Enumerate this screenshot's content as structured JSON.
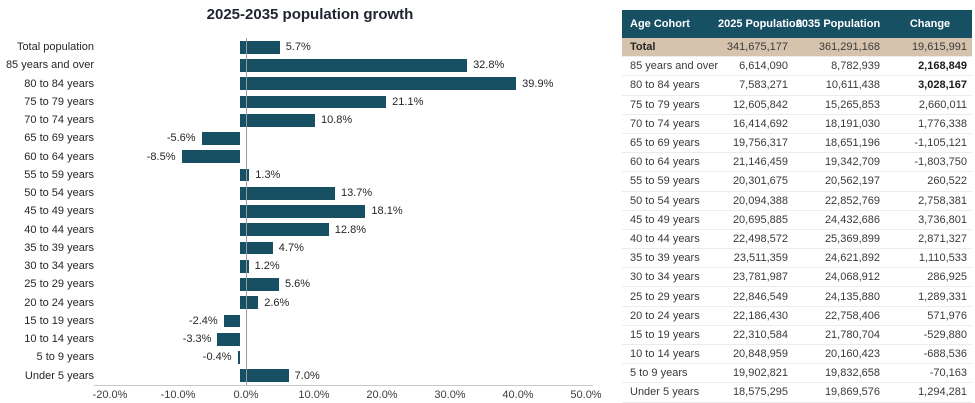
{
  "chart_data": {
    "type": "bar",
    "orientation": "horizontal",
    "title": "2025-2035 population growth",
    "categories": [
      "Total population",
      "85 years and over",
      "80 to 84 years",
      "75 to 79 years",
      "70 to 74 years",
      "65 to 69 years",
      "60 to 64 years",
      "55 to 59 years",
      "50 to 54 years",
      "45 to 49 years",
      "40 to 44 years",
      "35 to 39 years",
      "30 to 34 years",
      "25 to 29 years",
      "20 to 24 years",
      "15 to 19 years",
      "10 to 14 years",
      "5 to 9 years",
      "Under 5 years"
    ],
    "values": [
      5.7,
      32.8,
      39.9,
      21.1,
      10.8,
      -5.6,
      -8.5,
      1.3,
      13.7,
      18.1,
      12.8,
      4.7,
      1.2,
      5.6,
      2.6,
      -2.4,
      -3.3,
      -0.4,
      7.0
    ],
    "data_labels": [
      "5.7%",
      "32.8%",
      "39.9%",
      "21.1%",
      "10.8%",
      "-5.6%",
      "-8.5%",
      "1.3%",
      "13.7%",
      "18.1%",
      "12.8%",
      "4.7%",
      "1.2%",
      "5.6%",
      "2.6%",
      "-2.4%",
      "-3.3%",
      "-0.4%",
      "7.0%"
    ],
    "xlim": [
      -20,
      50
    ],
    "x_ticks": [
      "-20.0%",
      "-10.0%",
      "0.0%",
      "10.0%",
      "20.0%",
      "30.0%",
      "40.0%",
      "50.0%"
    ],
    "xlabel": "",
    "ylabel": "",
    "grid": "off",
    "legend_position": "none",
    "bar_color": "#174f63"
  },
  "table": {
    "header_bg": "#174f63",
    "total_row_bg": "#d6c3ae",
    "headers": [
      "Age Cohort",
      "2025 Population",
      "2035 Population",
      "Change"
    ],
    "rows": [
      {
        "cohort": "Total",
        "p2025": "341,675,177",
        "p2035": "361,291,168",
        "change": "19,615,991",
        "highlight": true,
        "bold_change": false
      },
      {
        "cohort": "85 years and over",
        "p2025": "6,614,090",
        "p2035": "8,782,939",
        "change": "2,168,849",
        "highlight": false,
        "bold_change": true
      },
      {
        "cohort": "80 to 84 years",
        "p2025": "7,583,271",
        "p2035": "10,611,438",
        "change": "3,028,167",
        "highlight": false,
        "bold_change": true
      },
      {
        "cohort": "75 to 79 years",
        "p2025": "12,605,842",
        "p2035": "15,265,853",
        "change": "2,660,011",
        "highlight": false,
        "bold_change": false
      },
      {
        "cohort": "70 to 74 years",
        "p2025": "16,414,692",
        "p2035": "18,191,030",
        "change": "1,776,338",
        "highlight": false,
        "bold_change": false
      },
      {
        "cohort": "65 to 69 years",
        "p2025": "19,756,317",
        "p2035": "18,651,196",
        "change": "-1,105,121",
        "highlight": false,
        "bold_change": false
      },
      {
        "cohort": "60 to 64 years",
        "p2025": "21,146,459",
        "p2035": "19,342,709",
        "change": "-1,803,750",
        "highlight": false,
        "bold_change": false
      },
      {
        "cohort": "55 to 59 years",
        "p2025": "20,301,675",
        "p2035": "20,562,197",
        "change": "260,522",
        "highlight": false,
        "bold_change": false
      },
      {
        "cohort": "50 to 54 years",
        "p2025": "20,094,388",
        "p2035": "22,852,769",
        "change": "2,758,381",
        "highlight": false,
        "bold_change": false
      },
      {
        "cohort": "45 to 49 years",
        "p2025": "20,695,885",
        "p2035": "24,432,686",
        "change": "3,736,801",
        "highlight": false,
        "bold_change": false
      },
      {
        "cohort": "40 to 44 years",
        "p2025": "22,498,572",
        "p2035": "25,369,899",
        "change": "2,871,327",
        "highlight": false,
        "bold_change": false
      },
      {
        "cohort": "35 to 39 years",
        "p2025": "23,511,359",
        "p2035": "24,621,892",
        "change": "1,110,533",
        "highlight": false,
        "bold_change": false
      },
      {
        "cohort": "30 to 34 years",
        "p2025": "23,781,987",
        "p2035": "24,068,912",
        "change": "286,925",
        "highlight": false,
        "bold_change": false
      },
      {
        "cohort": "25 to 29 years",
        "p2025": "22,846,549",
        "p2035": "24,135,880",
        "change": "1,289,331",
        "highlight": false,
        "bold_change": false
      },
      {
        "cohort": "20 to 24 years",
        "p2025": "22,186,430",
        "p2035": "22,758,406",
        "change": "571,976",
        "highlight": false,
        "bold_change": false
      },
      {
        "cohort": "15 to 19 years",
        "p2025": "22,310,584",
        "p2035": "21,780,704",
        "change": "-529,880",
        "highlight": false,
        "bold_change": false
      },
      {
        "cohort": "10 to 14 years",
        "p2025": "20,848,959",
        "p2035": "20,160,423",
        "change": "-688,536",
        "highlight": false,
        "bold_change": false
      },
      {
        "cohort": "5 to 9 years",
        "p2025": "19,902,821",
        "p2035": "19,832,658",
        "change": "-70,163",
        "highlight": false,
        "bold_change": false
      },
      {
        "cohort": "Under 5 years",
        "p2025": "18,575,295",
        "p2035": "19,869,576",
        "change": "1,294,281",
        "highlight": false,
        "bold_change": false
      }
    ]
  }
}
